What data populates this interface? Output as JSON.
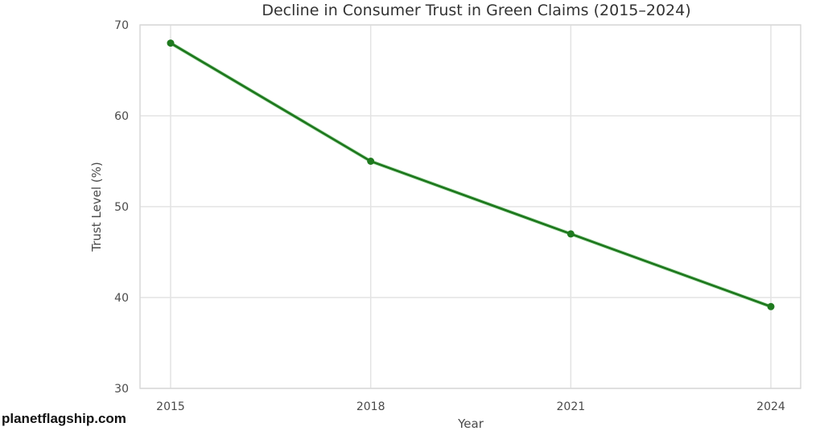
{
  "chart_data": {
    "type": "line",
    "title": "Decline in Consumer Trust in Green Claims (2015–2024)",
    "xlabel": "Year",
    "ylabel": "Trust Level (%)",
    "x": [
      "2015",
      "2018",
      "2021",
      "2024"
    ],
    "series": [
      {
        "name": "Trust Level (%)",
        "values": [
          68,
          55,
          47,
          39
        ],
        "color": "#1f7a1f",
        "marker": "circle"
      }
    ],
    "x_ticks": [
      "2015",
      "2018",
      "2021",
      "2024"
    ],
    "y_ticks": [
      30,
      40,
      50,
      60,
      70
    ],
    "ylim": [
      30,
      70
    ],
    "grid": true,
    "legend": null
  },
  "watermark": "planetflagship.com",
  "colors": {
    "line": "#1f7a1f",
    "grid": "#e3e3e3",
    "frame": "#d9d9d9",
    "text": "#4a4a4a"
  }
}
